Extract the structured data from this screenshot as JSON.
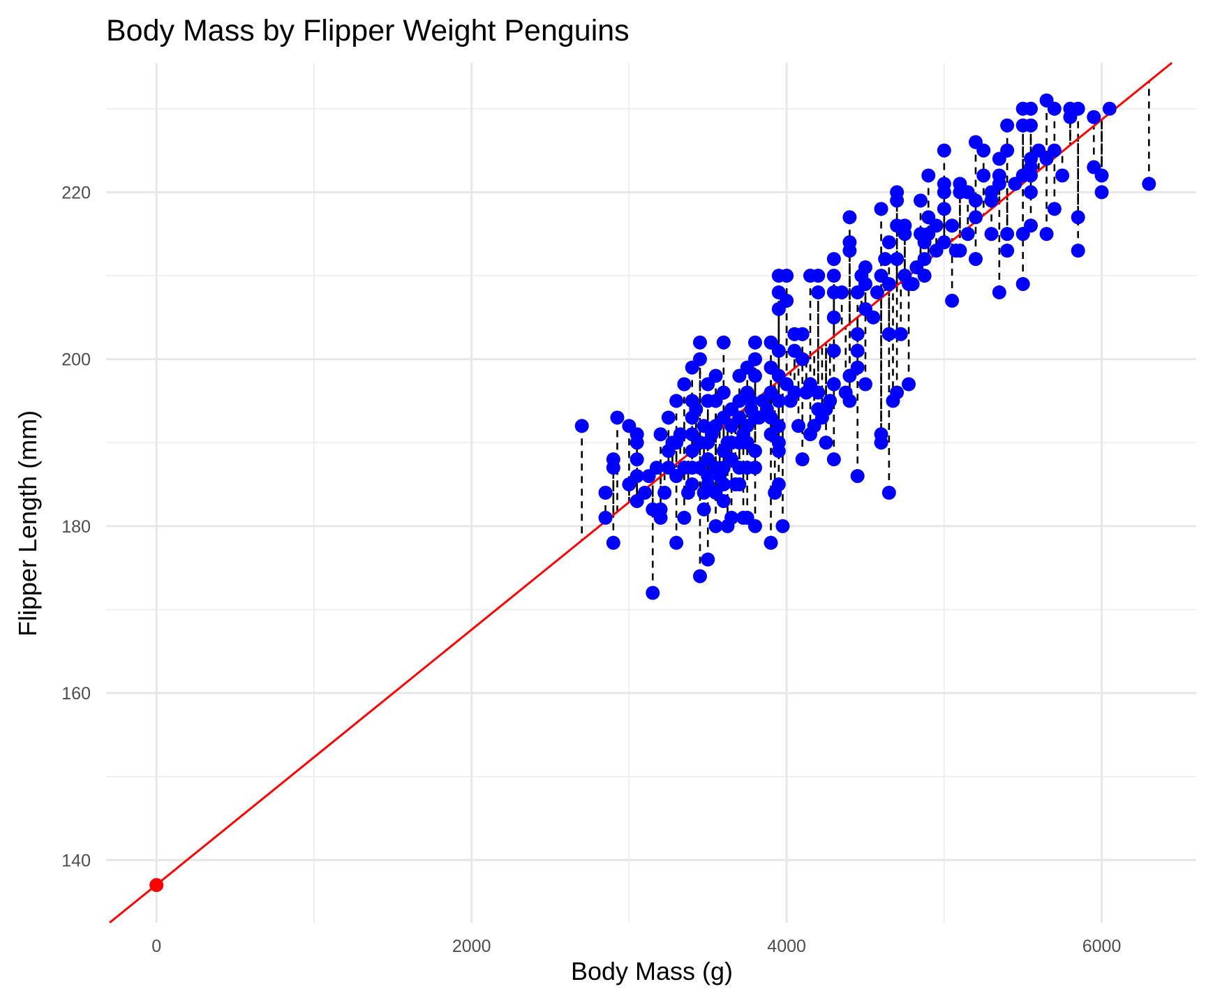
{
  "chart_data": {
    "type": "scatter",
    "title": "Body Mass by Flipper Weight Penguins",
    "xlabel": "Body Mass (g)",
    "ylabel": "Flipper Length (mm)",
    "xlim": [
      -320,
      6600
    ],
    "ylim": [
      132.5,
      235.5
    ],
    "x_ticks": [
      0,
      2000,
      4000,
      6000
    ],
    "x_tick_labels": [
      "0",
      "2000",
      "4000",
      "6000"
    ],
    "y_ticks": [
      140,
      160,
      180,
      200,
      220
    ],
    "y_tick_labels": [
      "140",
      "160",
      "180",
      "200",
      "220"
    ],
    "x_minor_ticks": [
      1000,
      3000,
      5000
    ],
    "y_minor_ticks": [
      150,
      170,
      190,
      210,
      230
    ],
    "grid": true,
    "legend": "none",
    "colors": {
      "points": "#0000ff",
      "fit_line": "#ff0000",
      "intercept_point": "#ff0000",
      "residuals": "#000000",
      "grid": "#ebebeb",
      "tick_text": "#4d4d4d"
    },
    "fit_line": {
      "intercept": 137.04,
      "slope": 0.015276
    },
    "intercept_point": {
      "x": 0,
      "y": 137
    },
    "residual_style": "dashed",
    "points": [
      [
        2700,
        192
      ],
      [
        2850,
        181
      ],
      [
        2850,
        184
      ],
      [
        2900,
        178
      ],
      [
        2900,
        187
      ],
      [
        2900,
        188
      ],
      [
        2925,
        193
      ],
      [
        3000,
        185
      ],
      [
        3000,
        192
      ],
      [
        3050,
        183
      ],
      [
        3050,
        186
      ],
      [
        3050,
        188
      ],
      [
        3050,
        190
      ],
      [
        3050,
        191
      ],
      [
        3100,
        184
      ],
      [
        3125,
        186
      ],
      [
        3150,
        172
      ],
      [
        3150,
        182
      ],
      [
        3175,
        187
      ],
      [
        3200,
        181
      ],
      [
        3200,
        182
      ],
      [
        3200,
        191
      ],
      [
        3225,
        184
      ],
      [
        3250,
        187
      ],
      [
        3250,
        189
      ],
      [
        3250,
        193
      ],
      [
        3275,
        190
      ],
      [
        3300,
        178
      ],
      [
        3300,
        186
      ],
      [
        3300,
        190
      ],
      [
        3300,
        195
      ],
      [
        3325,
        191
      ],
      [
        3350,
        181
      ],
      [
        3350,
        187
      ],
      [
        3350,
        197
      ],
      [
        3375,
        184
      ],
      [
        3400,
        185
      ],
      [
        3400,
        187
      ],
      [
        3400,
        189
      ],
      [
        3400,
        191
      ],
      [
        3400,
        193
      ],
      [
        3400,
        195
      ],
      [
        3400,
        199
      ],
      [
        3425,
        194
      ],
      [
        3450,
        174
      ],
      [
        3450,
        187
      ],
      [
        3450,
        190
      ],
      [
        3450,
        200
      ],
      [
        3450,
        202
      ],
      [
        3475,
        182
      ],
      [
        3475,
        184
      ],
      [
        3475,
        192
      ],
      [
        3500,
        176
      ],
      [
        3500,
        185
      ],
      [
        3500,
        186
      ],
      [
        3500,
        188
      ],
      [
        3500,
        190
      ],
      [
        3500,
        195
      ],
      [
        3500,
        197
      ],
      [
        3525,
        191
      ],
      [
        3550,
        180
      ],
      [
        3550,
        184
      ],
      [
        3550,
        187
      ],
      [
        3550,
        192
      ],
      [
        3550,
        195
      ],
      [
        3550,
        198
      ],
      [
        3575,
        186
      ],
      [
        3600,
        183
      ],
      [
        3600,
        185
      ],
      [
        3600,
        187
      ],
      [
        3600,
        189
      ],
      [
        3600,
        193
      ],
      [
        3600,
        196
      ],
      [
        3600,
        202
      ],
      [
        3625,
        180
      ],
      [
        3625,
        190
      ],
      [
        3650,
        181
      ],
      [
        3650,
        188
      ],
      [
        3650,
        190
      ],
      [
        3650,
        192
      ],
      [
        3650,
        194
      ],
      [
        3675,
        185
      ],
      [
        3700,
        185
      ],
      [
        3700,
        187
      ],
      [
        3700,
        190
      ],
      [
        3700,
        193
      ],
      [
        3700,
        195
      ],
      [
        3700,
        198
      ],
      [
        3725,
        181
      ],
      [
        3725,
        191
      ],
      [
        3750,
        181
      ],
      [
        3750,
        187
      ],
      [
        3750,
        190
      ],
      [
        3750,
        192
      ],
      [
        3750,
        196
      ],
      [
        3750,
        199
      ],
      [
        3775,
        194
      ],
      [
        3775,
        195
      ],
      [
        3800,
        180
      ],
      [
        3800,
        187
      ],
      [
        3800,
        189
      ],
      [
        3800,
        193
      ],
      [
        3800,
        198
      ],
      [
        3800,
        200
      ],
      [
        3800,
        202
      ],
      [
        3825,
        193
      ],
      [
        3850,
        195
      ],
      [
        3875,
        194
      ],
      [
        3900,
        178
      ],
      [
        3900,
        191
      ],
      [
        3900,
        193
      ],
      [
        3900,
        196
      ],
      [
        3900,
        199
      ],
      [
        3900,
        202
      ],
      [
        3925,
        184
      ],
      [
        3950,
        185
      ],
      [
        3950,
        189
      ],
      [
        3950,
        190
      ],
      [
        3950,
        192
      ],
      [
        3950,
        195
      ],
      [
        3950,
        198
      ],
      [
        3950,
        201
      ],
      [
        3950,
        206
      ],
      [
        3950,
        208
      ],
      [
        3950,
        210
      ],
      [
        3975,
        180
      ],
      [
        4000,
        197
      ],
      [
        4000,
        207
      ],
      [
        4000,
        210
      ],
      [
        4025,
        195
      ],
      [
        4050,
        196
      ],
      [
        4050,
        201
      ],
      [
        4050,
        203
      ],
      [
        4075,
        192
      ],
      [
        4100,
        188
      ],
      [
        4100,
        200
      ],
      [
        4100,
        203
      ],
      [
        4125,
        196
      ],
      [
        4150,
        191
      ],
      [
        4150,
        197
      ],
      [
        4150,
        210
      ],
      [
        4175,
        192
      ],
      [
        4200,
        194
      ],
      [
        4200,
        196
      ],
      [
        4200,
        208
      ],
      [
        4200,
        210
      ],
      [
        4225,
        193
      ],
      [
        4250,
        190
      ],
      [
        4250,
        194
      ],
      [
        4275,
        195
      ],
      [
        4300,
        188
      ],
      [
        4300,
        197
      ],
      [
        4300,
        201
      ],
      [
        4300,
        205
      ],
      [
        4300,
        208
      ],
      [
        4300,
        210
      ],
      [
        4300,
        212
      ],
      [
        4350,
        208
      ],
      [
        4375,
        196
      ],
      [
        4400,
        195
      ],
      [
        4400,
        198
      ],
      [
        4400,
        213
      ],
      [
        4400,
        214
      ],
      [
        4400,
        217
      ],
      [
        4450,
        186
      ],
      [
        4450,
        199
      ],
      [
        4450,
        201
      ],
      [
        4450,
        203
      ],
      [
        4450,
        208
      ],
      [
        4475,
        210
      ],
      [
        4500,
        197
      ],
      [
        4500,
        206
      ],
      [
        4500,
        209
      ],
      [
        4500,
        211
      ],
      [
        4550,
        205
      ],
      [
        4575,
        208
      ],
      [
        4600,
        190
      ],
      [
        4600,
        191
      ],
      [
        4600,
        210
      ],
      [
        4600,
        218
      ],
      [
        4625,
        212
      ],
      [
        4650,
        184
      ],
      [
        4650,
        203
      ],
      [
        4650,
        209
      ],
      [
        4650,
        214
      ],
      [
        4675,
        195
      ],
      [
        4700,
        196
      ],
      [
        4700,
        212
      ],
      [
        4700,
        216
      ],
      [
        4700,
        219
      ],
      [
        4700,
        220
      ],
      [
        4725,
        203
      ],
      [
        4750,
        210
      ],
      [
        4750,
        215
      ],
      [
        4750,
        216
      ],
      [
        4775,
        197
      ],
      [
        4775,
        209
      ],
      [
        4800,
        209
      ],
      [
        4825,
        211
      ],
      [
        4850,
        215
      ],
      [
        4850,
        219
      ],
      [
        4875,
        210
      ],
      [
        4875,
        212
      ],
      [
        4875,
        214
      ],
      [
        4900,
        215
      ],
      [
        4900,
        217
      ],
      [
        4900,
        222
      ],
      [
        4950,
        213
      ],
      [
        4950,
        216
      ],
      [
        5000,
        214
      ],
      [
        5000,
        218
      ],
      [
        5000,
        220
      ],
      [
        5000,
        221
      ],
      [
        5000,
        225
      ],
      [
        5050,
        207
      ],
      [
        5050,
        216
      ],
      [
        5075,
        213
      ],
      [
        5100,
        213
      ],
      [
        5100,
        220
      ],
      [
        5100,
        221
      ],
      [
        5150,
        215
      ],
      [
        5150,
        220
      ],
      [
        5200,
        212
      ],
      [
        5200,
        217
      ],
      [
        5200,
        219
      ],
      [
        5200,
        226
      ],
      [
        5250,
        225
      ],
      [
        5250,
        222
      ],
      [
        5300,
        215
      ],
      [
        5300,
        219
      ],
      [
        5300,
        220
      ],
      [
        5350,
        208
      ],
      [
        5350,
        221
      ],
      [
        5350,
        222
      ],
      [
        5350,
        224
      ],
      [
        5400,
        213
      ],
      [
        5400,
        215
      ],
      [
        5400,
        225
      ],
      [
        5400,
        228
      ],
      [
        5450,
        221
      ],
      [
        5500,
        209
      ],
      [
        5500,
        215
      ],
      [
        5500,
        222
      ],
      [
        5500,
        228
      ],
      [
        5500,
        230
      ],
      [
        5550,
        216
      ],
      [
        5550,
        220
      ],
      [
        5550,
        222
      ],
      [
        5550,
        223
      ],
      [
        5550,
        224
      ],
      [
        5550,
        228
      ],
      [
        5550,
        230
      ],
      [
        5600,
        225
      ],
      [
        5650,
        215
      ],
      [
        5650,
        224
      ],
      [
        5650,
        231
      ],
      [
        5700,
        218
      ],
      [
        5700,
        225
      ],
      [
        5700,
        230
      ],
      [
        5750,
        222
      ],
      [
        5800,
        229
      ],
      [
        5800,
        230
      ],
      [
        5850,
        213
      ],
      [
        5850,
        217
      ],
      [
        5850,
        230
      ],
      [
        5950,
        223
      ],
      [
        5950,
        229
      ],
      [
        6000,
        220
      ],
      [
        6000,
        222
      ],
      [
        6050,
        230
      ],
      [
        6300,
        221
      ]
    ]
  }
}
